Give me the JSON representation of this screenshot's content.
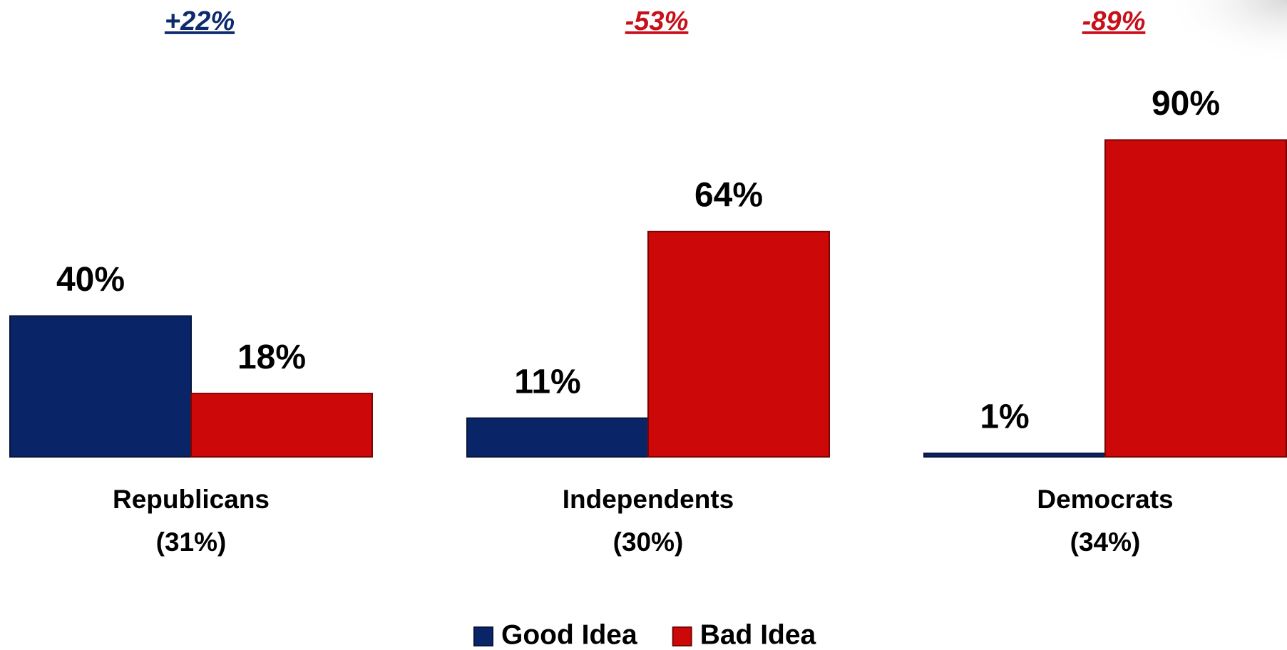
{
  "chart_data": {
    "type": "bar",
    "annotations": [
      {
        "text": "+22%",
        "color": "#0d2a6e"
      },
      {
        "text": "-53%",
        "color": "#c8101a"
      },
      {
        "text": "-89%",
        "color": "#c8101a"
      }
    ],
    "categories": [
      "Republicans",
      "Independents",
      "Democrats"
    ],
    "category_sublabels": [
      "(31%)",
      "(30%)",
      "(34%)"
    ],
    "series": [
      {
        "name": "Good Idea",
        "color": "#0a2468",
        "values": [
          40,
          11,
          1
        ],
        "value_labels": [
          "40%",
          "11%",
          "1%"
        ]
      },
      {
        "name": "Bad Idea",
        "color": "#cc0808",
        "values": [
          18,
          64,
          90
        ],
        "value_labels": [
          "18%",
          "64%",
          "90%"
        ]
      }
    ],
    "ylim": [
      0,
      100
    ]
  }
}
